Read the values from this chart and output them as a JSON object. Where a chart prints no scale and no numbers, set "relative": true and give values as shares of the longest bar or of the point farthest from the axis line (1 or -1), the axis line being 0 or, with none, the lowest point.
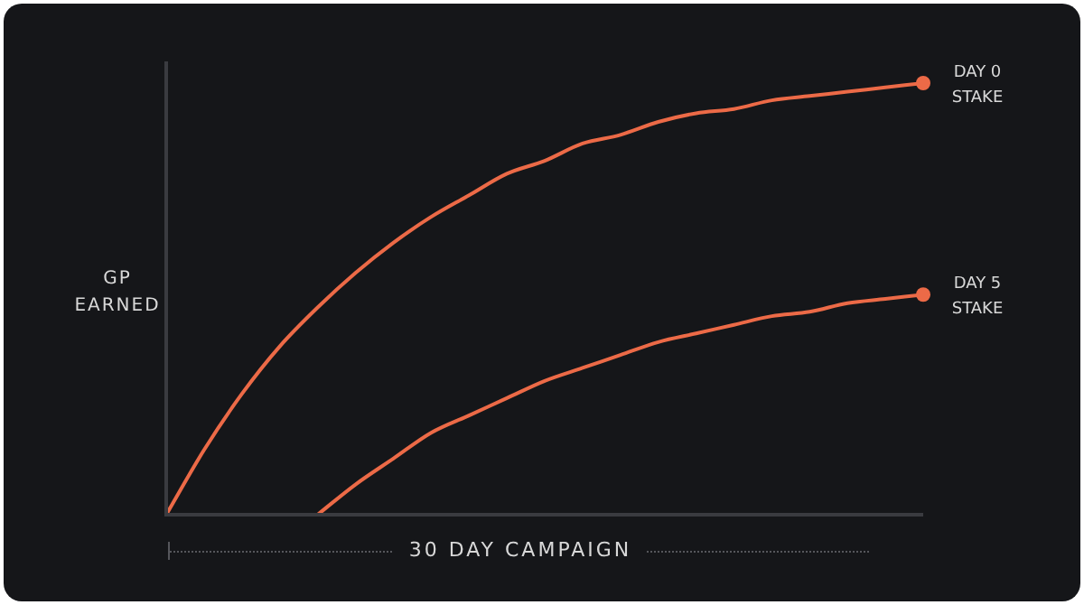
{
  "chart_data": {
    "type": "line",
    "relative": true,
    "xlabel": "30 DAY CAMPAIGN",
    "ylabel": "GP EARNED",
    "categories": [
      null,
      null,
      null,
      null,
      null,
      null,
      null,
      null,
      null,
      null,
      null,
      null,
      null,
      null,
      null,
      null,
      null,
      null,
      null,
      null,
      null
    ],
    "series": [
      {
        "name": "DAY 0 STAKE",
        "color": "#ec6a47",
        "values": [
          0,
          0.15,
          0.28,
          0.39,
          0.48,
          0.56,
          0.63,
          0.69,
          0.74,
          0.79,
          0.82,
          0.86,
          0.88,
          0.91,
          0.93,
          0.94,
          0.96,
          0.97,
          0.98,
          0.99,
          1
        ]
      },
      {
        "name": "DAY 5 STAKE",
        "color": "#ec6a47",
        "values": [
          null,
          null,
          null,
          null,
          0,
          0.07,
          0.13,
          0.19,
          0.23,
          0.27,
          0.31,
          0.34,
          0.37,
          0.4,
          0.42,
          0.44,
          0.46,
          0.47,
          0.49,
          0.5,
          0.51
        ]
      }
    ]
  }
}
